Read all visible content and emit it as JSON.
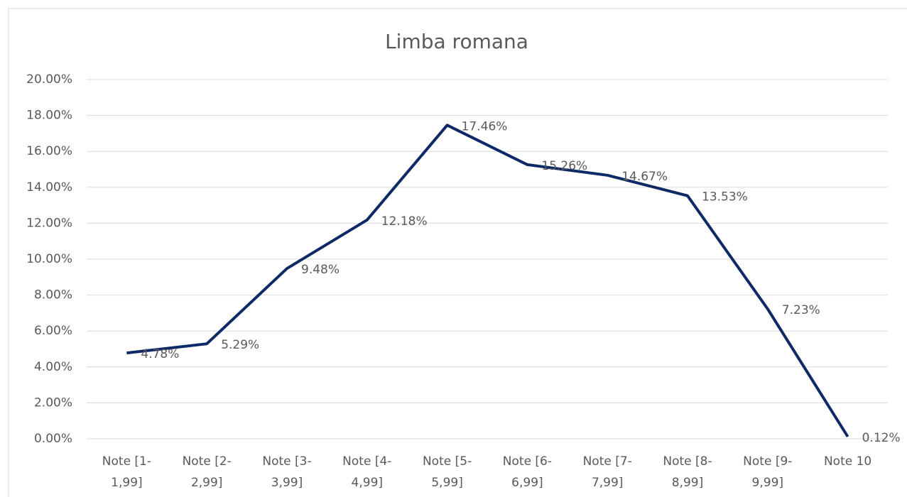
{
  "chart_data": {
    "type": "line",
    "title": "Limba romana",
    "categories": [
      [
        "Note [1-",
        "1,99]"
      ],
      [
        "Note [2-",
        "2,99]"
      ],
      [
        "Note [3-",
        "3,99]"
      ],
      [
        "Note [4-",
        "4,99]"
      ],
      [
        "Note [5-",
        "5,99]"
      ],
      [
        "Note [6-",
        "6,99]"
      ],
      [
        "Note [7-",
        "7,99]"
      ],
      [
        "Note [8-",
        "8,99]"
      ],
      [
        "Note [9-",
        "9,99]"
      ],
      [
        "Note 10"
      ]
    ],
    "values": [
      4.78,
      5.29,
      9.48,
      12.18,
      17.46,
      15.26,
      14.67,
      13.53,
      7.23,
      0.12
    ],
    "value_labels": [
      "4.78%",
      "5.29%",
      "9.48%",
      "12.18%",
      "17.46%",
      "15.26%",
      "14.67%",
      "13.53%",
      "7.23%",
      "0.12%"
    ],
    "color": "#0e2a66",
    "ylim": [
      0,
      20
    ],
    "yticks": [
      {
        "value": 0,
        "label": "0.00%"
      },
      {
        "value": 2,
        "label": "2.00%"
      },
      {
        "value": 4,
        "label": "4.00%"
      },
      {
        "value": 6,
        "label": "6.00%"
      },
      {
        "value": 8,
        "label": "8.00%"
      },
      {
        "value": 10,
        "label": "10.00%"
      },
      {
        "value": 12,
        "label": "12.00%"
      },
      {
        "value": 14,
        "label": "14.00%"
      },
      {
        "value": 16,
        "label": "16.00%"
      },
      {
        "value": 18,
        "label": "18.00%"
      },
      {
        "value": 20,
        "label": "20.00%"
      }
    ],
    "grid": true
  }
}
